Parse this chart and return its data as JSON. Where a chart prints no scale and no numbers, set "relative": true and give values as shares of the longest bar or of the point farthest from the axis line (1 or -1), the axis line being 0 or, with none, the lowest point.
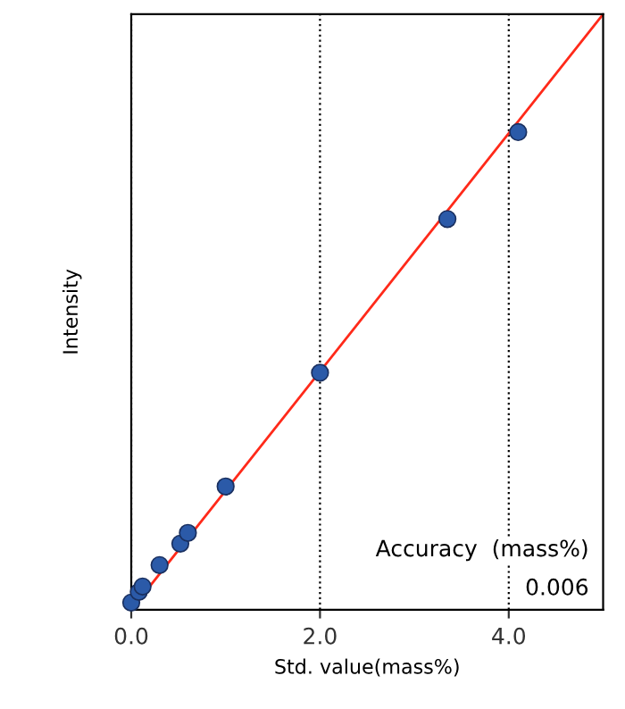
{
  "chart_data": {
    "type": "scatter",
    "xlabel": "Std. value(mass%)",
    "ylabel": "Intensity",
    "relative": true,
    "xlim": [
      0,
      5
    ],
    "xticks": [
      {
        "value": 0,
        "label": "0.0"
      },
      {
        "value": 2,
        "label": "2.0"
      },
      {
        "value": 4,
        "label": "4.0"
      }
    ],
    "tick_labels": "x",
    "grid": "x",
    "series": [
      {
        "type": "line",
        "color": "#ff2a1a",
        "x": [
          0,
          5.0
        ],
        "values": [
          0,
          1
        ]
      },
      {
        "marker": "circle",
        "color": "#2b5aa8",
        "x": [
          0.0,
          0.08,
          0.12,
          0.3,
          0.52,
          0.6,
          1.0,
          2.0,
          3.35,
          4.1
        ],
        "values": [
          0.012,
          0.03,
          0.039,
          0.075,
          0.111,
          0.129,
          0.207,
          0.398,
          0.656,
          0.802
        ]
      }
    ],
    "annotations": [
      "Accuracy  (mass%)",
      "0.006"
    ]
  }
}
